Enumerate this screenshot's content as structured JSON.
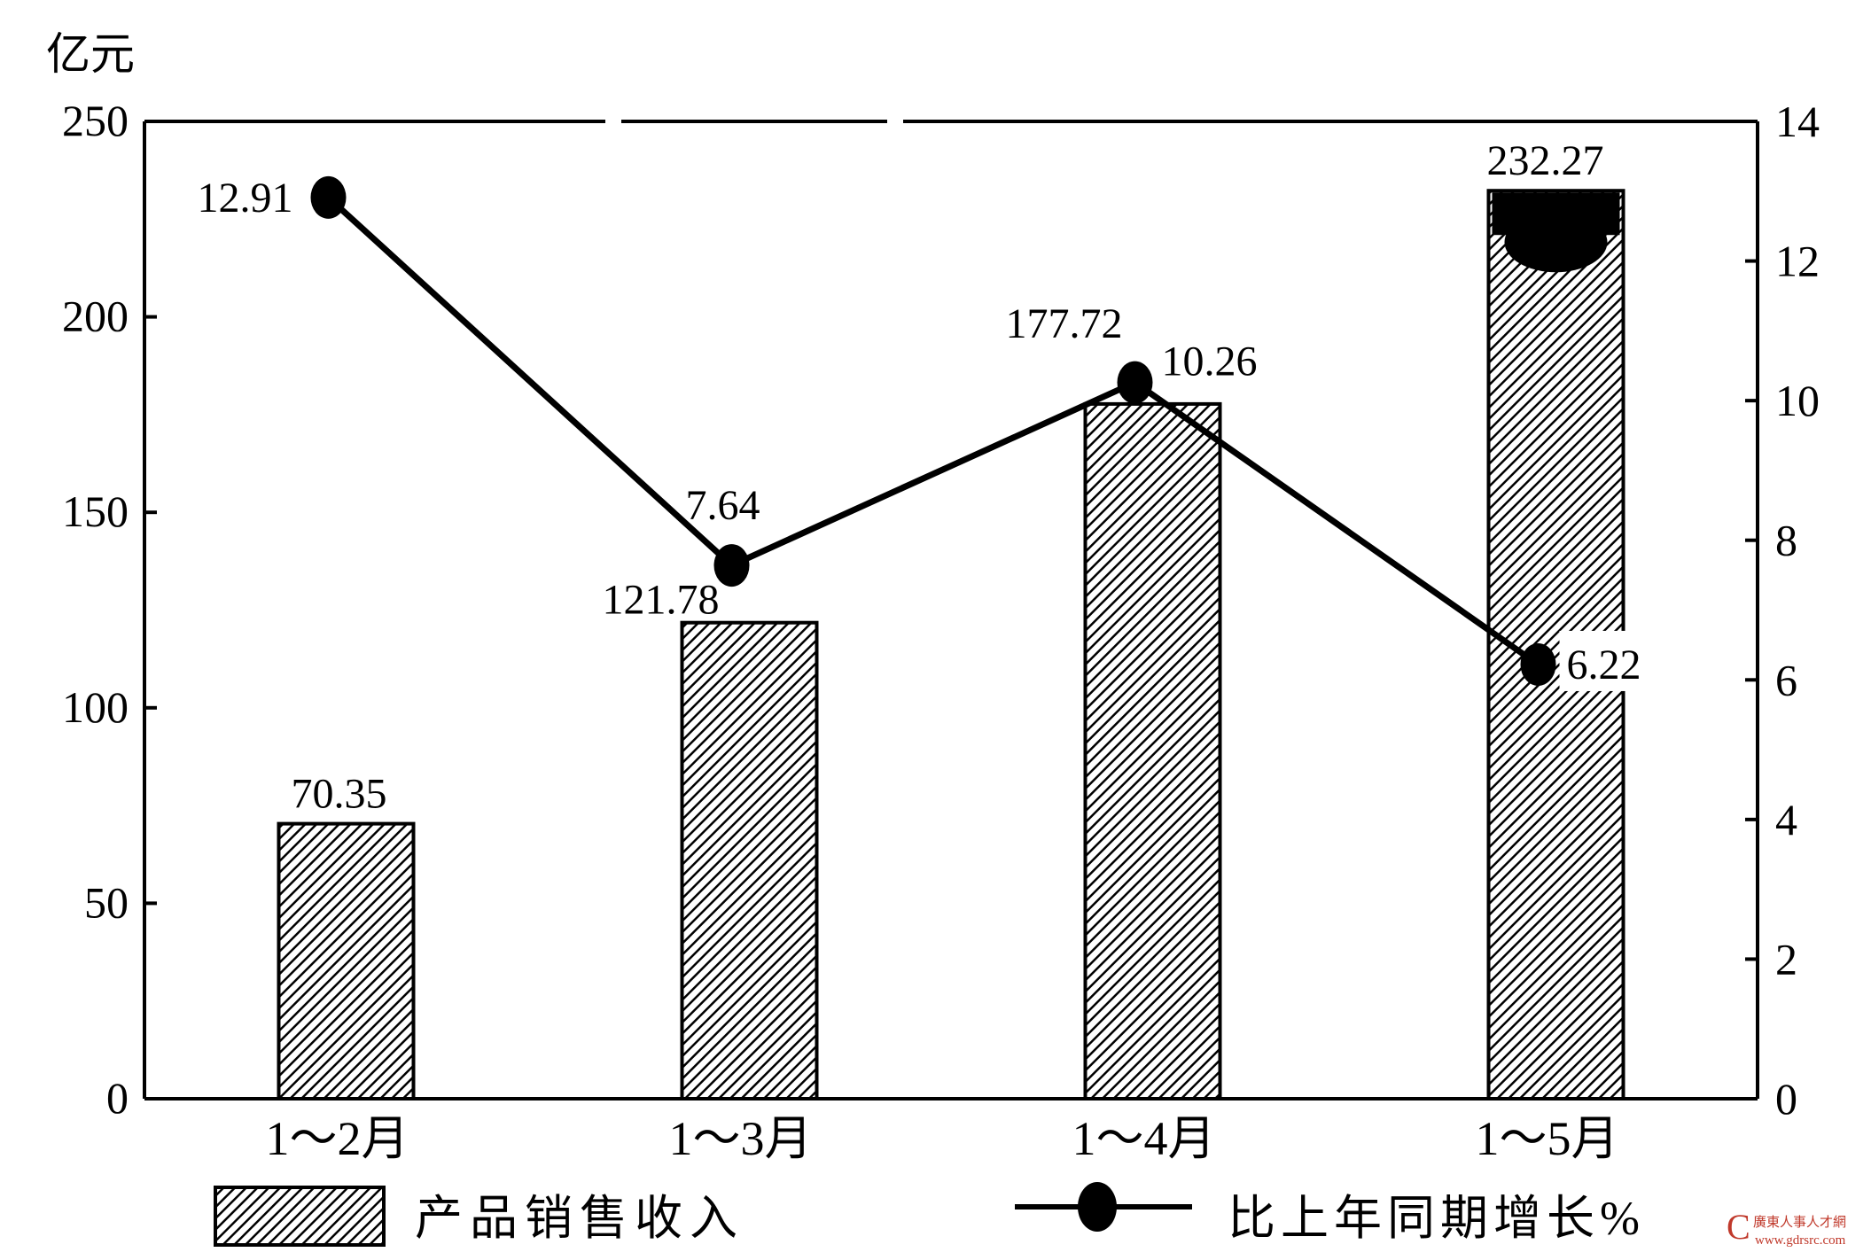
{
  "chart_data": {
    "type": "bar",
    "categories": [
      "1～2月",
      "1～3月",
      "1～4月",
      "1～5月"
    ],
    "series": [
      {
        "name": "产品销售收入",
        "type": "bar",
        "axis": "left",
        "values": [
          70.35,
          121.78,
          177.72,
          232.27
        ]
      },
      {
        "name": "比上年同期增长%",
        "type": "line",
        "axis": "right",
        "values": [
          12.91,
          7.64,
          10.26,
          6.22
        ]
      }
    ],
    "ylabel": "亿元",
    "ylim": [
      0,
      250
    ],
    "yticks": [
      "0",
      "50",
      "100",
      "150",
      "200",
      "250"
    ],
    "y2lim": [
      0,
      14
    ],
    "y2ticks": [
      "0",
      "2",
      "4",
      "6",
      "8",
      "10",
      "12",
      "14"
    ],
    "bar_labels": [
      "70.35",
      "121.78",
      "177.72",
      "232.27"
    ],
    "line_labels": [
      "12.91",
      "7.64",
      "10.26",
      "6.22"
    ],
    "legend_position": "bottom",
    "grid": false,
    "bar_pattern": "diagonal-hatch",
    "colors": {
      "ink": "#000000",
      "paper": "#ffffff"
    }
  },
  "watermark": {
    "text": "廣東人事人才網",
    "url": "www.gdrsrc.com"
  }
}
